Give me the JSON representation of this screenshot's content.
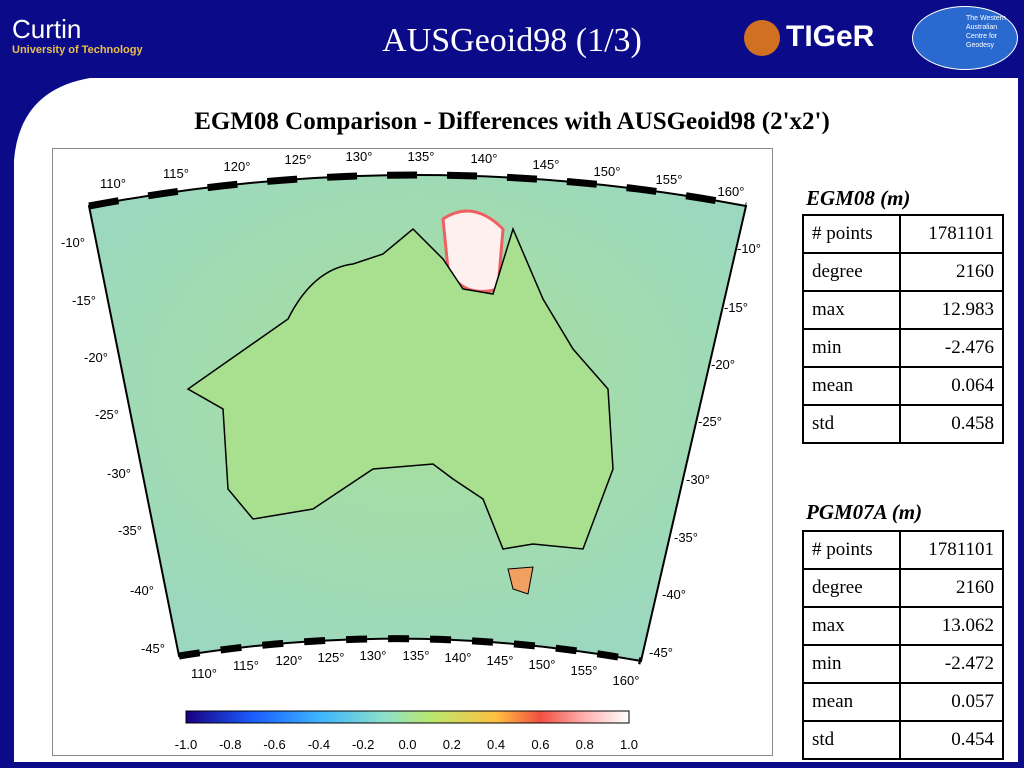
{
  "header": {
    "title": "AUSGeoid98 (1/3)",
    "left_logo": "Curtin",
    "left_logo_sub": "University of Technology",
    "right_logo": "TIGeR",
    "right_logo_sub": "The Western Australian Centre for Geodesy"
  },
  "subtitle": "EGM08 Comparison - Differences with AUSGeoid98 (2'x2')",
  "map": {
    "top_lon": [
      "110°",
      "115°",
      "120°",
      "125°",
      "130°",
      "135°",
      "140°",
      "145°",
      "150°",
      "155°",
      "160°"
    ],
    "bottom_lon": [
      "110°",
      "115°",
      "120°",
      "125°",
      "130°",
      "135°",
      "140°",
      "145°",
      "150°",
      "155°",
      "160°"
    ],
    "left_lat": [
      "-10°",
      "-15°",
      "-20°",
      "-25°",
      "-30°",
      "-35°",
      "-40°",
      "-45°"
    ],
    "right_lat": [
      "-10°",
      "-15°",
      "-20°",
      "-25°",
      "-30°",
      "-35°",
      "-40°",
      "-45°"
    ],
    "colorbar": [
      "-1.0",
      "-0.8",
      "-0.6",
      "-0.4",
      "-0.2",
      "0.0",
      "0.2",
      "0.4",
      "0.6",
      "0.8",
      "1.0"
    ]
  },
  "tables": [
    {
      "title": "EGM08 (m)",
      "rows": [
        [
          "# points",
          "1781101"
        ],
        [
          "degree",
          "2160"
        ],
        [
          "max",
          "12.983"
        ],
        [
          "min",
          "-2.476"
        ],
        [
          "mean",
          "0.064"
        ],
        [
          "std",
          "0.458"
        ]
      ]
    },
    {
      "title": "PGM07A (m)",
      "rows": [
        [
          "# points",
          "1781101"
        ],
        [
          "degree",
          "2160"
        ],
        [
          "max",
          "13.062"
        ],
        [
          "min",
          "-2.472"
        ],
        [
          "mean",
          "0.057"
        ],
        [
          "std",
          "0.454"
        ]
      ]
    }
  ]
}
